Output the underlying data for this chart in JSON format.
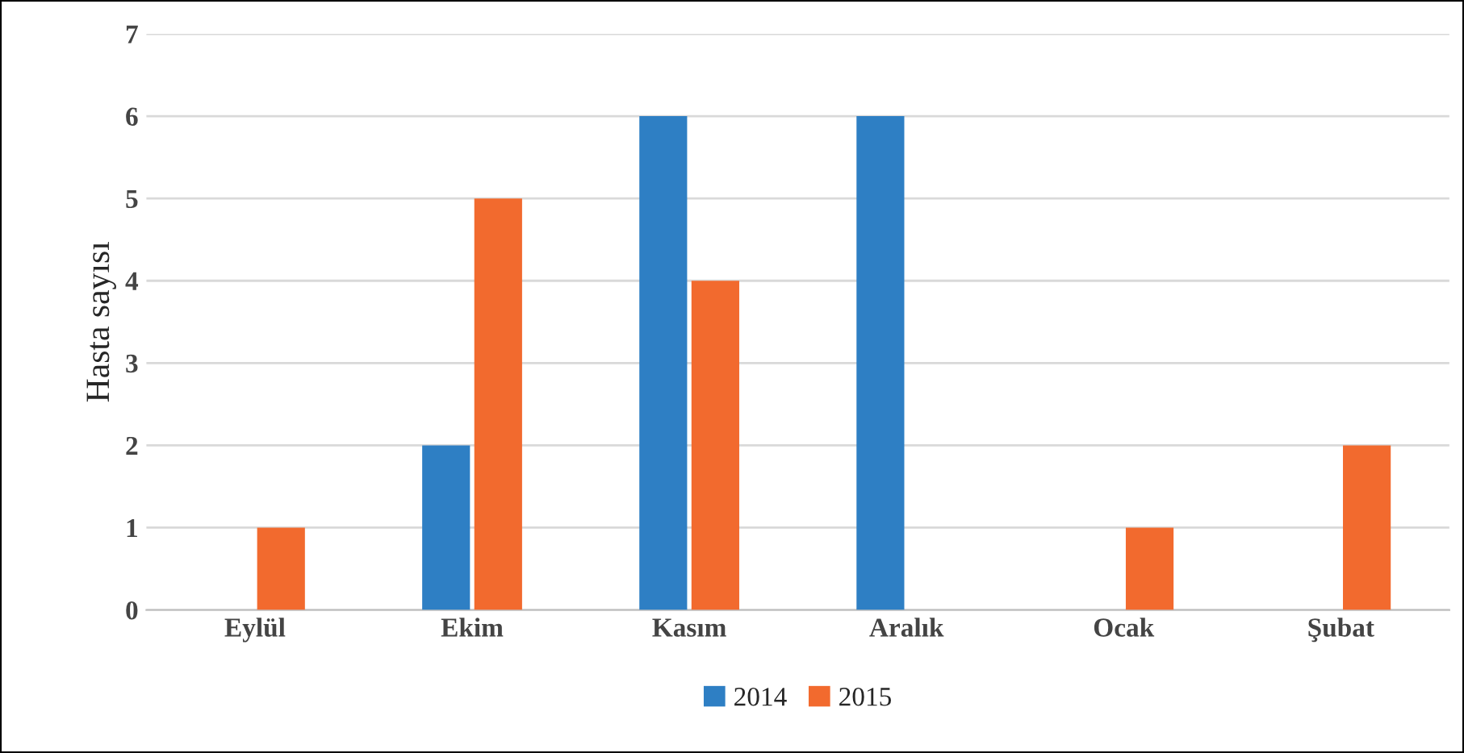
{
  "chart_data": {
    "type": "bar",
    "ylabel": "Hasta sayısı",
    "categories": [
      "Eylül",
      "Ekim",
      "Kasım",
      "Aralık",
      "Ocak",
      "Şubat"
    ],
    "series": [
      {
        "name": "2014",
        "color": "#2e7fc4",
        "values": [
          null,
          2,
          6,
          6,
          null,
          null
        ]
      },
      {
        "name": "2015",
        "color": "#f26a2e",
        "values": [
          1,
          5,
          4,
          null,
          1,
          2
        ]
      }
    ],
    "ylim": [
      0,
      7
    ],
    "yticks": [
      0,
      1,
      2,
      3,
      4,
      5,
      6,
      7
    ],
    "grid": "y",
    "legend": "bottom"
  }
}
